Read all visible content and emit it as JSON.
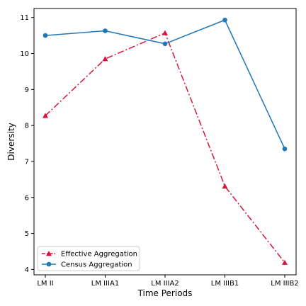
{
  "chart_data": {
    "type": "line",
    "categories": [
      "LM II",
      "LM IIIA1",
      "LM IIIA2",
      "LM IIIB1",
      "LM IIIB2"
    ],
    "xlabel": "Time Periods",
    "ylabel": "Diversity",
    "ylim": [
      3.85,
      11.25
    ],
    "yticks": [
      4,
      5,
      6,
      7,
      8,
      9,
      10,
      11
    ],
    "grid": false,
    "legend_position": "lower-left",
    "series": [
      {
        "name": "Effective Aggregation",
        "values": [
          8.27,
          9.85,
          10.57,
          6.31,
          4.19
        ],
        "color": "#d4163c",
        "marker": "triangle",
        "linestyle": "dashdot"
      },
      {
        "name": "Census Aggregation",
        "values": [
          10.5,
          10.63,
          10.27,
          10.93,
          7.35
        ],
        "color": "#1f77b4",
        "marker": "circle",
        "linestyle": "solid"
      }
    ]
  }
}
